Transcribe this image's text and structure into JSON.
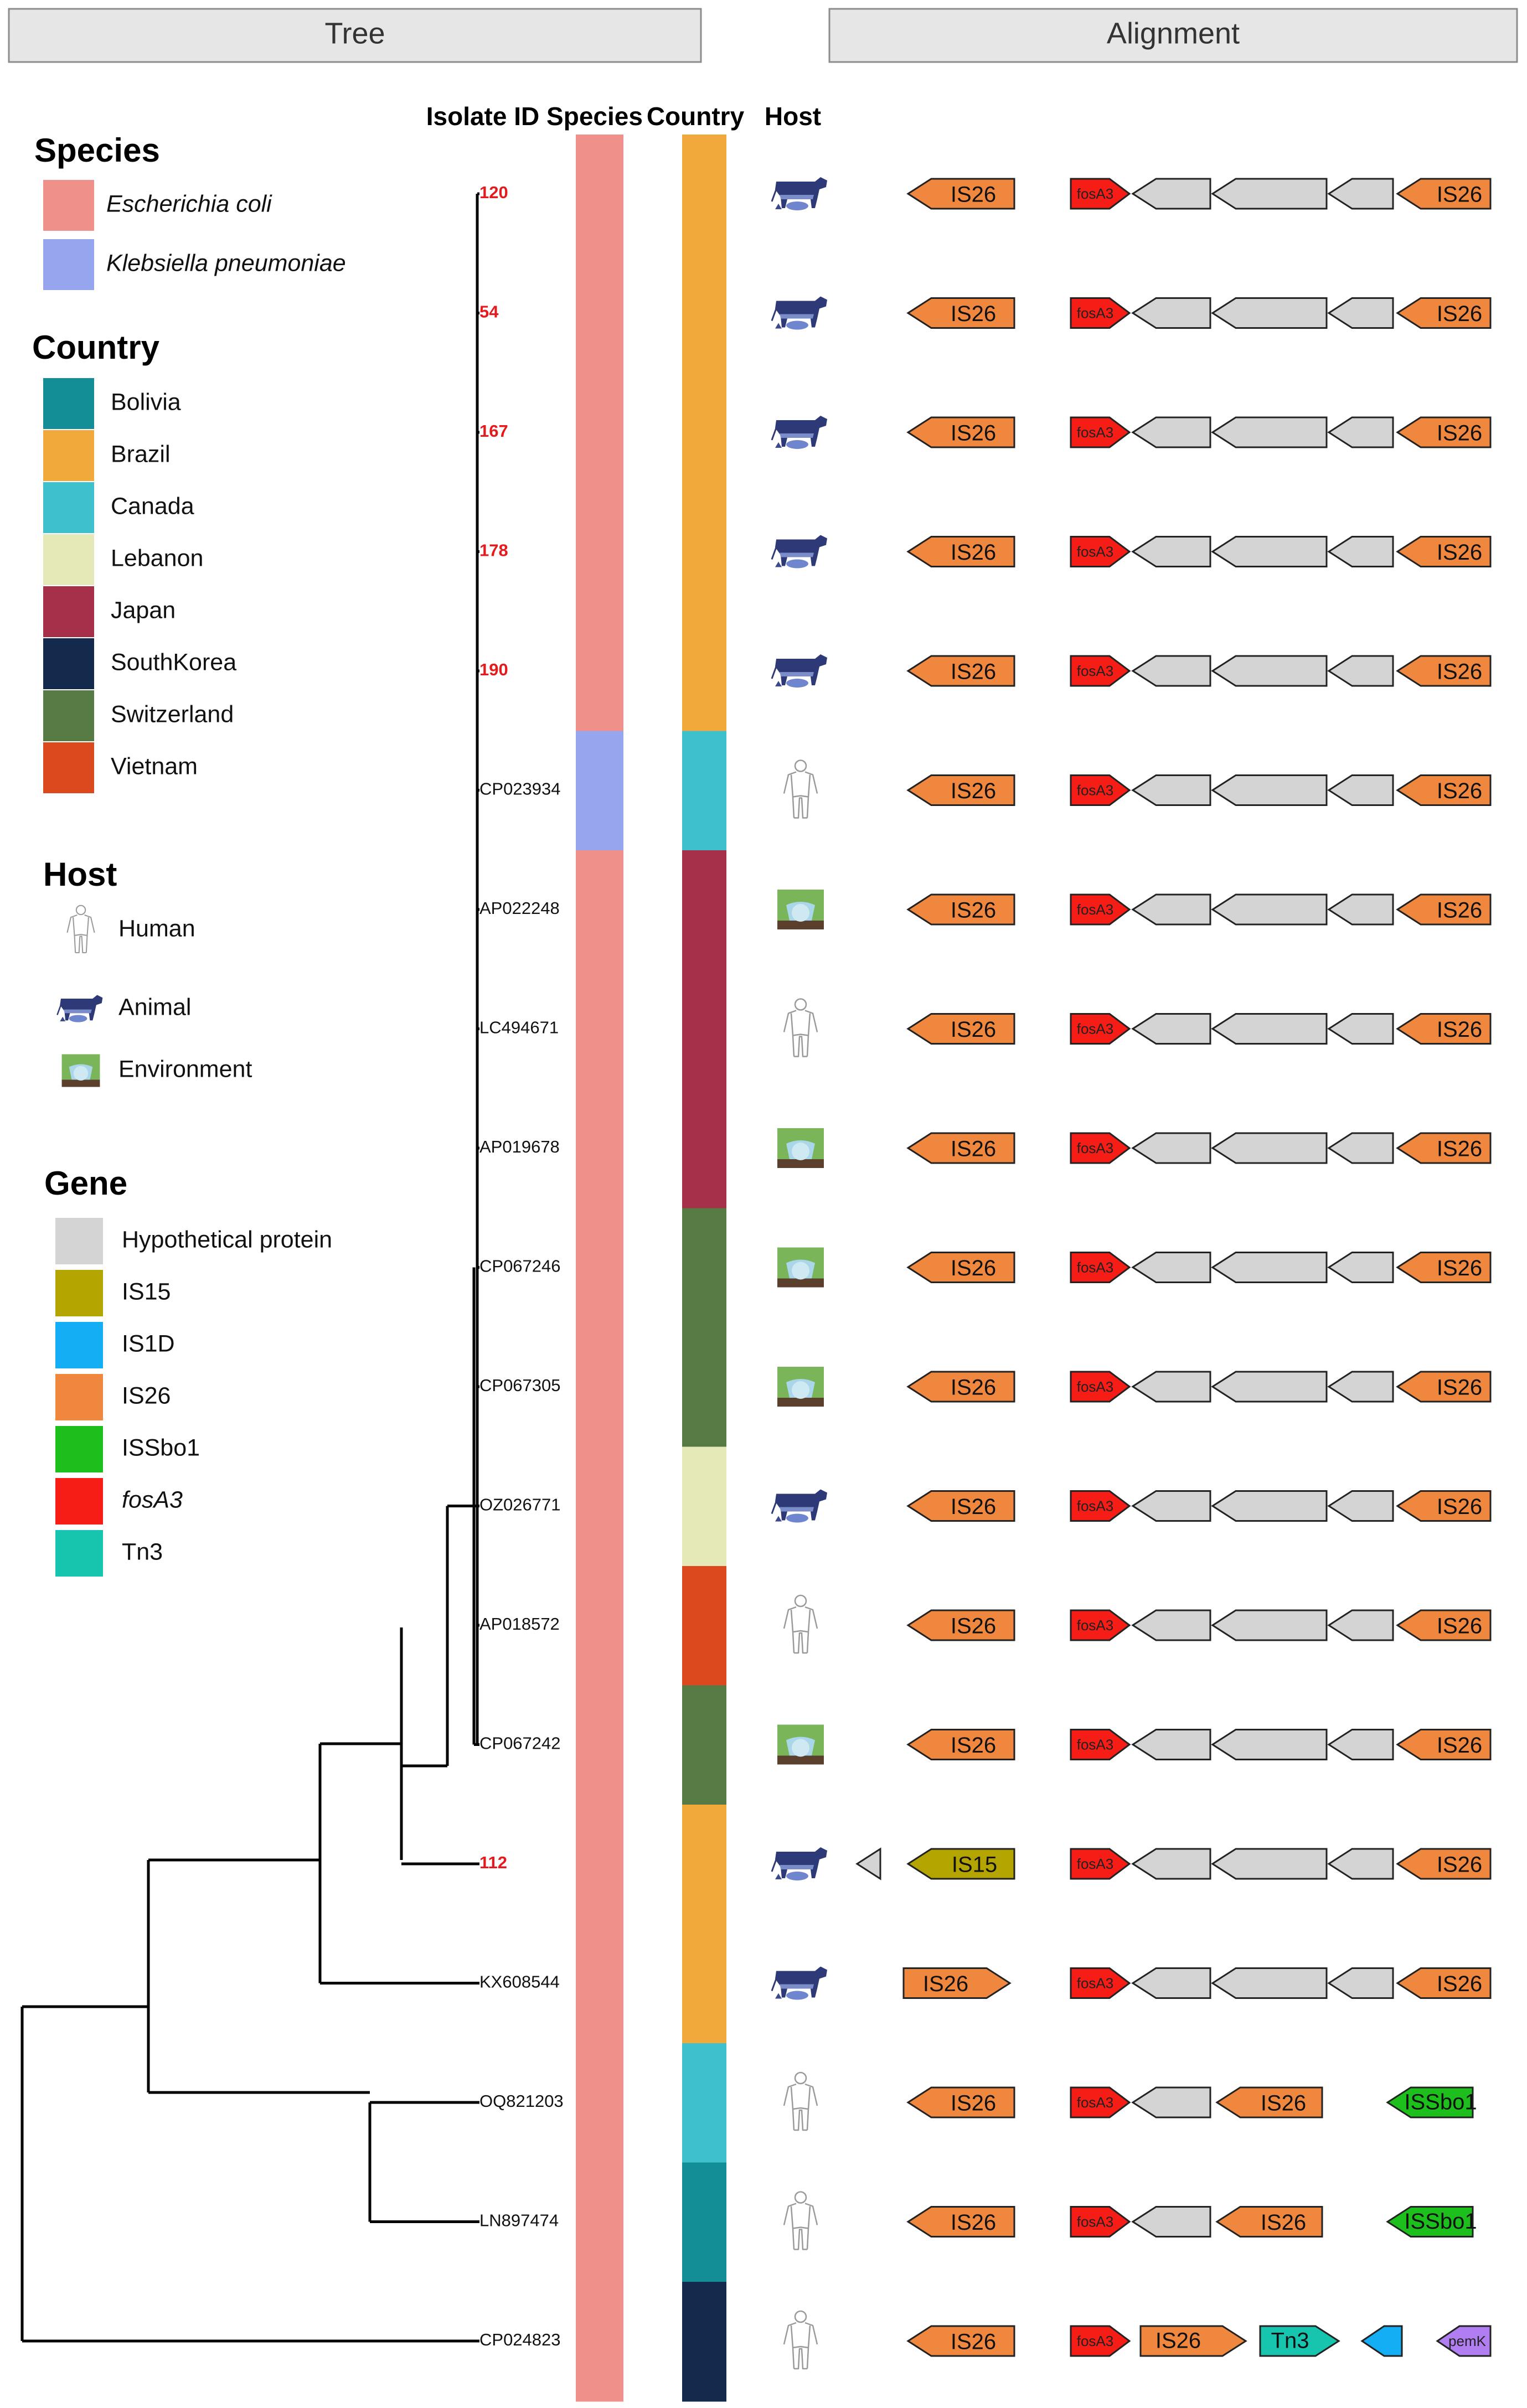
{
  "headers": {
    "tree": "Tree",
    "alignment": "Alignment"
  },
  "columns": {
    "isolate": "Isolate ID",
    "species": "Species",
    "country": "Country",
    "host": "Host"
  },
  "legend": {
    "species": {
      "title": "Species",
      "items": [
        {
          "label": "Escherichia coli",
          "color": "#f0908a",
          "italic": true
        },
        {
          "label": "Klebsiella pneumoniae",
          "color": "#95a6ef",
          "italic": true
        }
      ]
    },
    "country": {
      "title": "Country",
      "items": [
        {
          "label": "Bolivia",
          "color": "#138e96"
        },
        {
          "label": "Brazil",
          "color": "#f2a93b"
        },
        {
          "label": "Canada",
          "color": "#3ec1cc"
        },
        {
          "label": "Lebanon",
          "color": "#e5e9b8"
        },
        {
          "label": "Japan",
          "color": "#a6304a"
        },
        {
          "label": "SouthKorea",
          "color": "#142a4d"
        },
        {
          "label": "Switzerland",
          "color": "#557a43"
        },
        {
          "label": "Vietnam",
          "color": "#db4a1f"
        }
      ]
    },
    "host": {
      "title": "Host",
      "items": [
        {
          "label": "Human",
          "icon": "human"
        },
        {
          "label": "Animal",
          "icon": "animal"
        },
        {
          "label": "Environment",
          "icon": "environment"
        }
      ]
    },
    "gene": {
      "title": "Gene",
      "items": [
        {
          "label": "Hypothetical protein",
          "color": "#d4d4d4"
        },
        {
          "label": "IS15",
          "color": "#b3a400"
        },
        {
          "label": "IS1D",
          "color": "#14aef4"
        },
        {
          "label": "IS26",
          "color": "#f0873e"
        },
        {
          "label": "ISSbo1",
          "color": "#1cbf1c"
        },
        {
          "label": "fosA3",
          "color": "#f51d16",
          "italic": true
        },
        {
          "label": "Tn3",
          "color": "#17c4ad"
        }
      ]
    }
  },
  "gene_colors": {
    "hyp": "#d4d4d4",
    "IS15": "#b3a400",
    "IS1D": "#14aef4",
    "IS26": "#f0873e",
    "ISSbo1": "#1cbf1c",
    "fosA3": "#f51d16",
    "Tn3": "#17c4ad",
    "pemK": "#b07ef0"
  },
  "isolates": [
    {
      "id": "120",
      "red": true,
      "species": "Escherichia coli",
      "country": "Brazil",
      "host": "animal",
      "genes": "standard"
    },
    {
      "id": "54",
      "red": true,
      "species": "Escherichia coli",
      "country": "Brazil",
      "host": "animal",
      "genes": "standard"
    },
    {
      "id": "167",
      "red": true,
      "species": "Escherichia coli",
      "country": "Brazil",
      "host": "animal",
      "genes": "standard"
    },
    {
      "id": "178",
      "red": true,
      "species": "Escherichia coli",
      "country": "Brazil",
      "host": "animal",
      "genes": "standard"
    },
    {
      "id": "190",
      "red": true,
      "species": "Escherichia coli",
      "country": "Brazil",
      "host": "animal",
      "genes": "standard"
    },
    {
      "id": "CP023934",
      "red": false,
      "species": "Klebsiella pneumoniae",
      "country": "Canada",
      "host": "human",
      "genes": "standard"
    },
    {
      "id": "AP022248",
      "red": false,
      "species": "Escherichia coli",
      "country": "Japan",
      "host": "environment",
      "genes": "standard"
    },
    {
      "id": "LC494671",
      "red": false,
      "species": "Escherichia coli",
      "country": "Japan",
      "host": "human",
      "genes": "standard"
    },
    {
      "id": "AP019678",
      "red": false,
      "species": "Escherichia coli",
      "country": "Japan",
      "host": "environment",
      "genes": "standard"
    },
    {
      "id": "CP067246",
      "red": false,
      "species": "Escherichia coli",
      "country": "Switzerland",
      "host": "environment",
      "genes": "standard"
    },
    {
      "id": "CP067305",
      "red": false,
      "species": "Escherichia coli",
      "country": "Switzerland",
      "host": "environment",
      "genes": "standard"
    },
    {
      "id": "OZ026771",
      "red": false,
      "species": "Escherichia coli",
      "country": "Lebanon",
      "host": "animal",
      "genes": "standard"
    },
    {
      "id": "AP018572",
      "red": false,
      "species": "Escherichia coli",
      "country": "Vietnam",
      "host": "human",
      "genes": "standard"
    },
    {
      "id": "CP067242",
      "red": false,
      "species": "Escherichia coli",
      "country": "Switzerland",
      "host": "environment",
      "genes": "standard"
    },
    {
      "id": "112",
      "red": true,
      "species": "Escherichia coli",
      "country": "Brazil",
      "host": "animal",
      "genes": "is15"
    },
    {
      "id": "KX608544",
      "red": false,
      "species": "Escherichia coli",
      "country": "Brazil",
      "host": "animal",
      "genes": "fwd"
    },
    {
      "id": "OQ821203",
      "red": false,
      "species": "Escherichia coli",
      "country": "Canada",
      "host": "human",
      "genes": "issbo"
    },
    {
      "id": "LN897474",
      "red": false,
      "species": "Escherichia coli",
      "country": "Bolivia",
      "host": "human",
      "genes": "issbo"
    },
    {
      "id": "CP024823",
      "red": false,
      "species": "Escherichia coli",
      "country": "SouthKorea",
      "host": "human",
      "genes": "tn3"
    }
  ],
  "gene_labels": {
    "IS26": "IS26",
    "IS15": "IS15",
    "ISSbo1": "ISSbo1",
    "Tn3": "Tn3",
    "fosA3": "fosA3",
    "pemK": "pemK"
  }
}
